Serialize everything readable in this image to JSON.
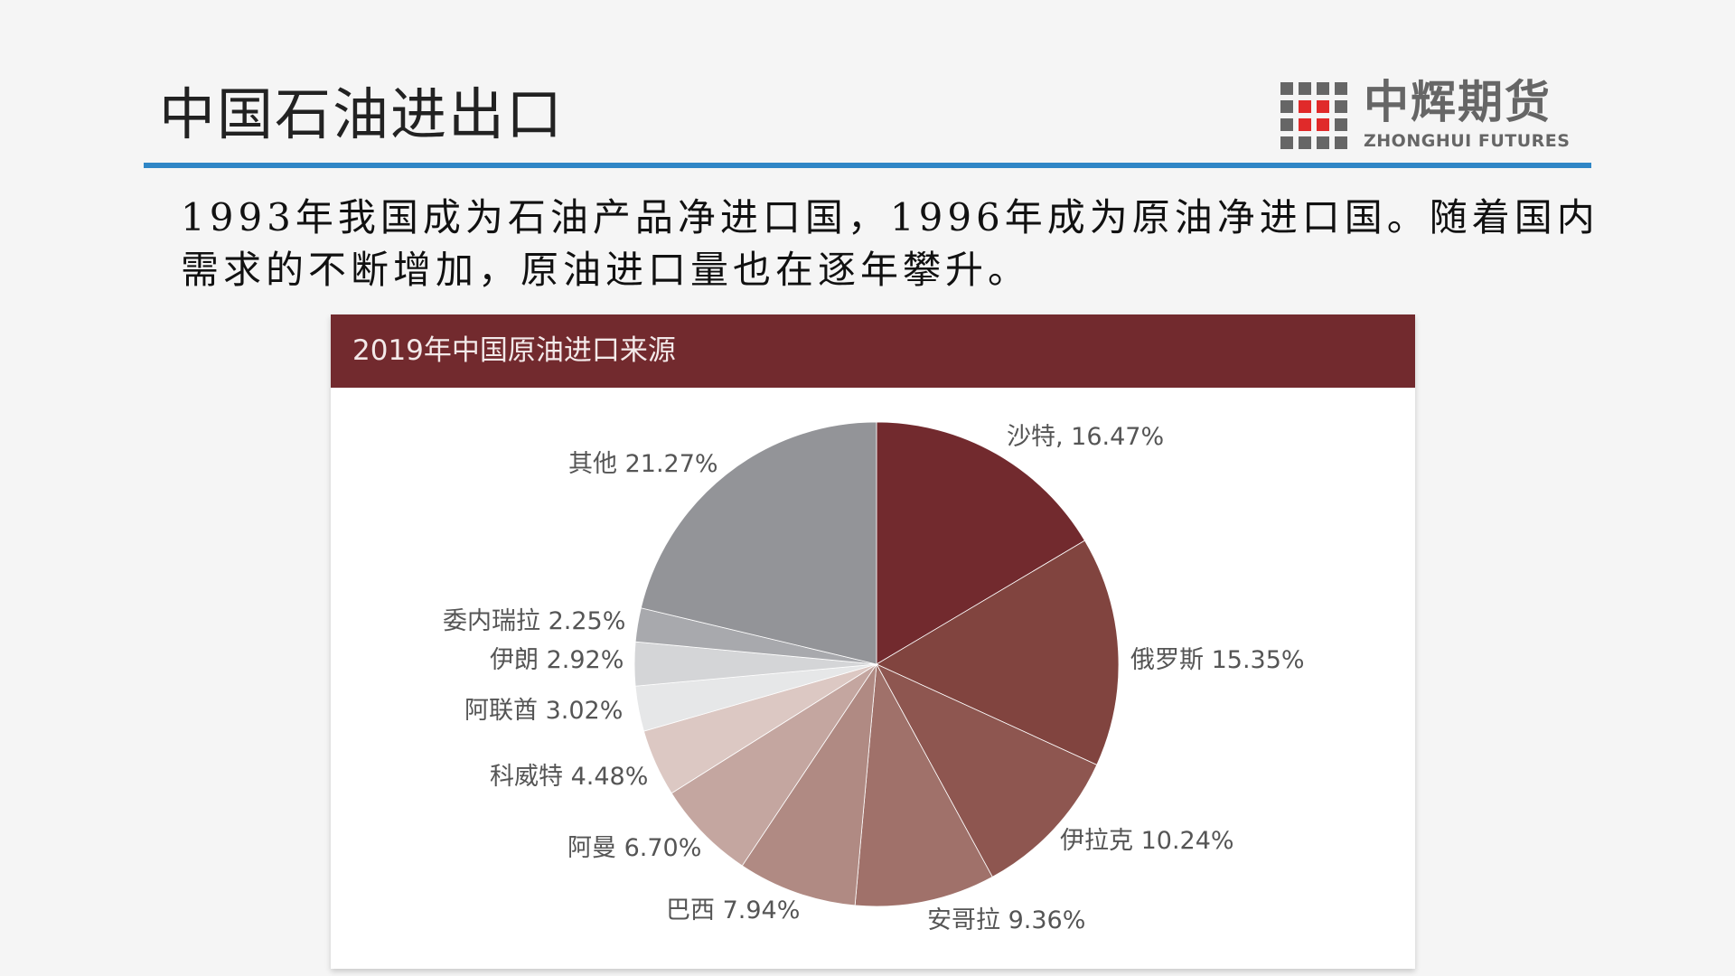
{
  "header": {
    "title": "中国石油进出口",
    "logo_cn": "中辉期货",
    "logo_en": "ZHONGHUI FUTURES"
  },
  "body_text": {
    "line1": "1993年我国成为石油产品净进口国，1996年成为原油净进口国。随着国内",
    "line2": "需求的不断增加，原油进口量也在逐年攀升。"
  },
  "chart_data": {
    "type": "pie",
    "title": "2019年中国原油进口来源",
    "start": "top, clockwise",
    "slices": [
      {
        "name": "沙特",
        "value": 16.47,
        "label": "沙特, 16.47%",
        "color": "#722a2e"
      },
      {
        "name": "俄罗斯",
        "value": 15.35,
        "label": "俄罗斯 15.35%",
        "color": "#81443f"
      },
      {
        "name": "伊拉克",
        "value": 10.24,
        "label": "伊拉克 10.24%",
        "color": "#8e5650"
      },
      {
        "name": "安哥拉",
        "value": 9.36,
        "label": "安哥拉 9.36%",
        "color": "#a0716a"
      },
      {
        "name": "巴西",
        "value": 7.94,
        "label": "巴西 7.94%",
        "color": "#b08a83"
      },
      {
        "name": "阿曼",
        "value": 6.7,
        "label": "阿曼 6.70%",
        "color": "#c4a6a0"
      },
      {
        "name": "科威特",
        "value": 4.48,
        "label": "科威特 4.48%",
        "color": "#dcc8c3"
      },
      {
        "name": "阿联酋",
        "value": 3.02,
        "label": "阿联酋 3.02%",
        "color": "#e6e7e8"
      },
      {
        "name": "伊朗",
        "value": 2.92,
        "label": "伊朗 2.92%",
        "color": "#d4d5d7"
      },
      {
        "name": "委内瑞拉",
        "value": 2.25,
        "label": "委内瑞拉 2.25%",
        "color": "#a8a9ad"
      },
      {
        "name": "其他",
        "value": 21.27,
        "label": "其他 21.27%",
        "color": "#939498"
      }
    ]
  }
}
